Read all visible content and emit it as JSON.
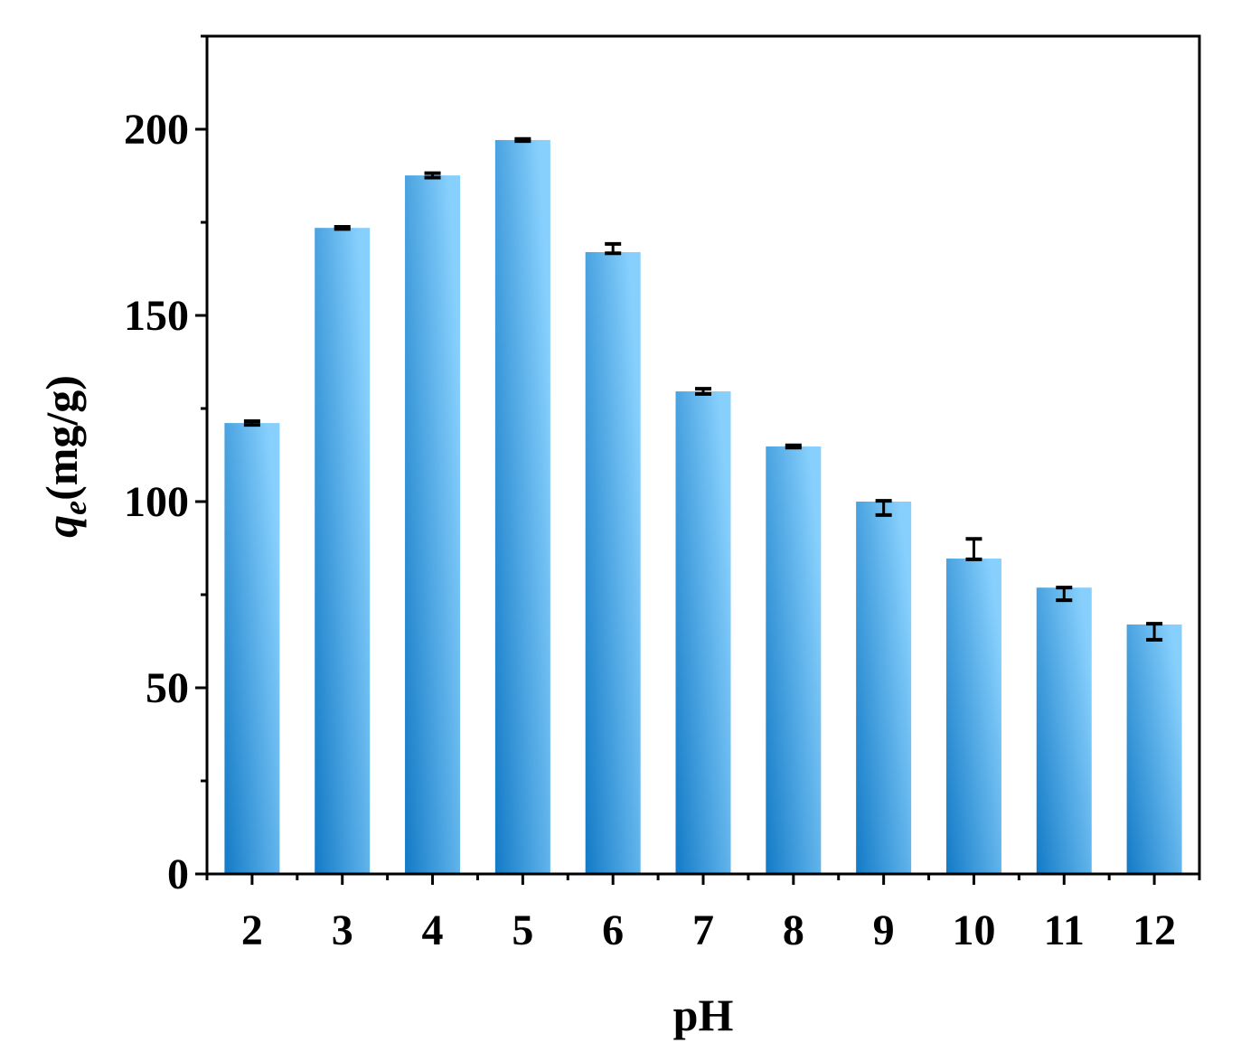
{
  "chart_data": {
    "type": "bar",
    "title": "",
    "xlabel": "pH",
    "ylabel_main": "q",
    "ylabel_sub": "e",
    "ylabel_unit": "(mg/g)",
    "categories": [
      "2",
      "3",
      "4",
      "5",
      "6",
      "7",
      "8",
      "9",
      "10",
      "11",
      "12"
    ],
    "x": [
      2,
      3,
      4,
      5,
      6,
      7,
      8,
      9,
      10,
      11,
      12
    ],
    "values": [
      121.1,
      173.5,
      187.6,
      197.1,
      167.0,
      129.6,
      114.8,
      100.0,
      84.7,
      76.9,
      67.0
    ],
    "error_low": [
      120.6,
      173.2,
      187.0,
      196.8,
      166.7,
      128.9,
      114.5,
      96.4,
      84.5,
      73.5,
      62.9
    ],
    "error_high": [
      121.6,
      173.8,
      188.2,
      197.4,
      169.2,
      130.3,
      115.1,
      100.2,
      90.0,
      76.9,
      67.2
    ],
    "xlim": [
      1.5,
      12.5
    ],
    "ylim": [
      0,
      225
    ],
    "yticks": [
      0,
      50,
      100,
      150,
      200
    ],
    "grid": false,
    "colors": {
      "bar_dark": "#137ac6",
      "bar_light": "#87d0fd",
      "axis": "#000000"
    }
  }
}
